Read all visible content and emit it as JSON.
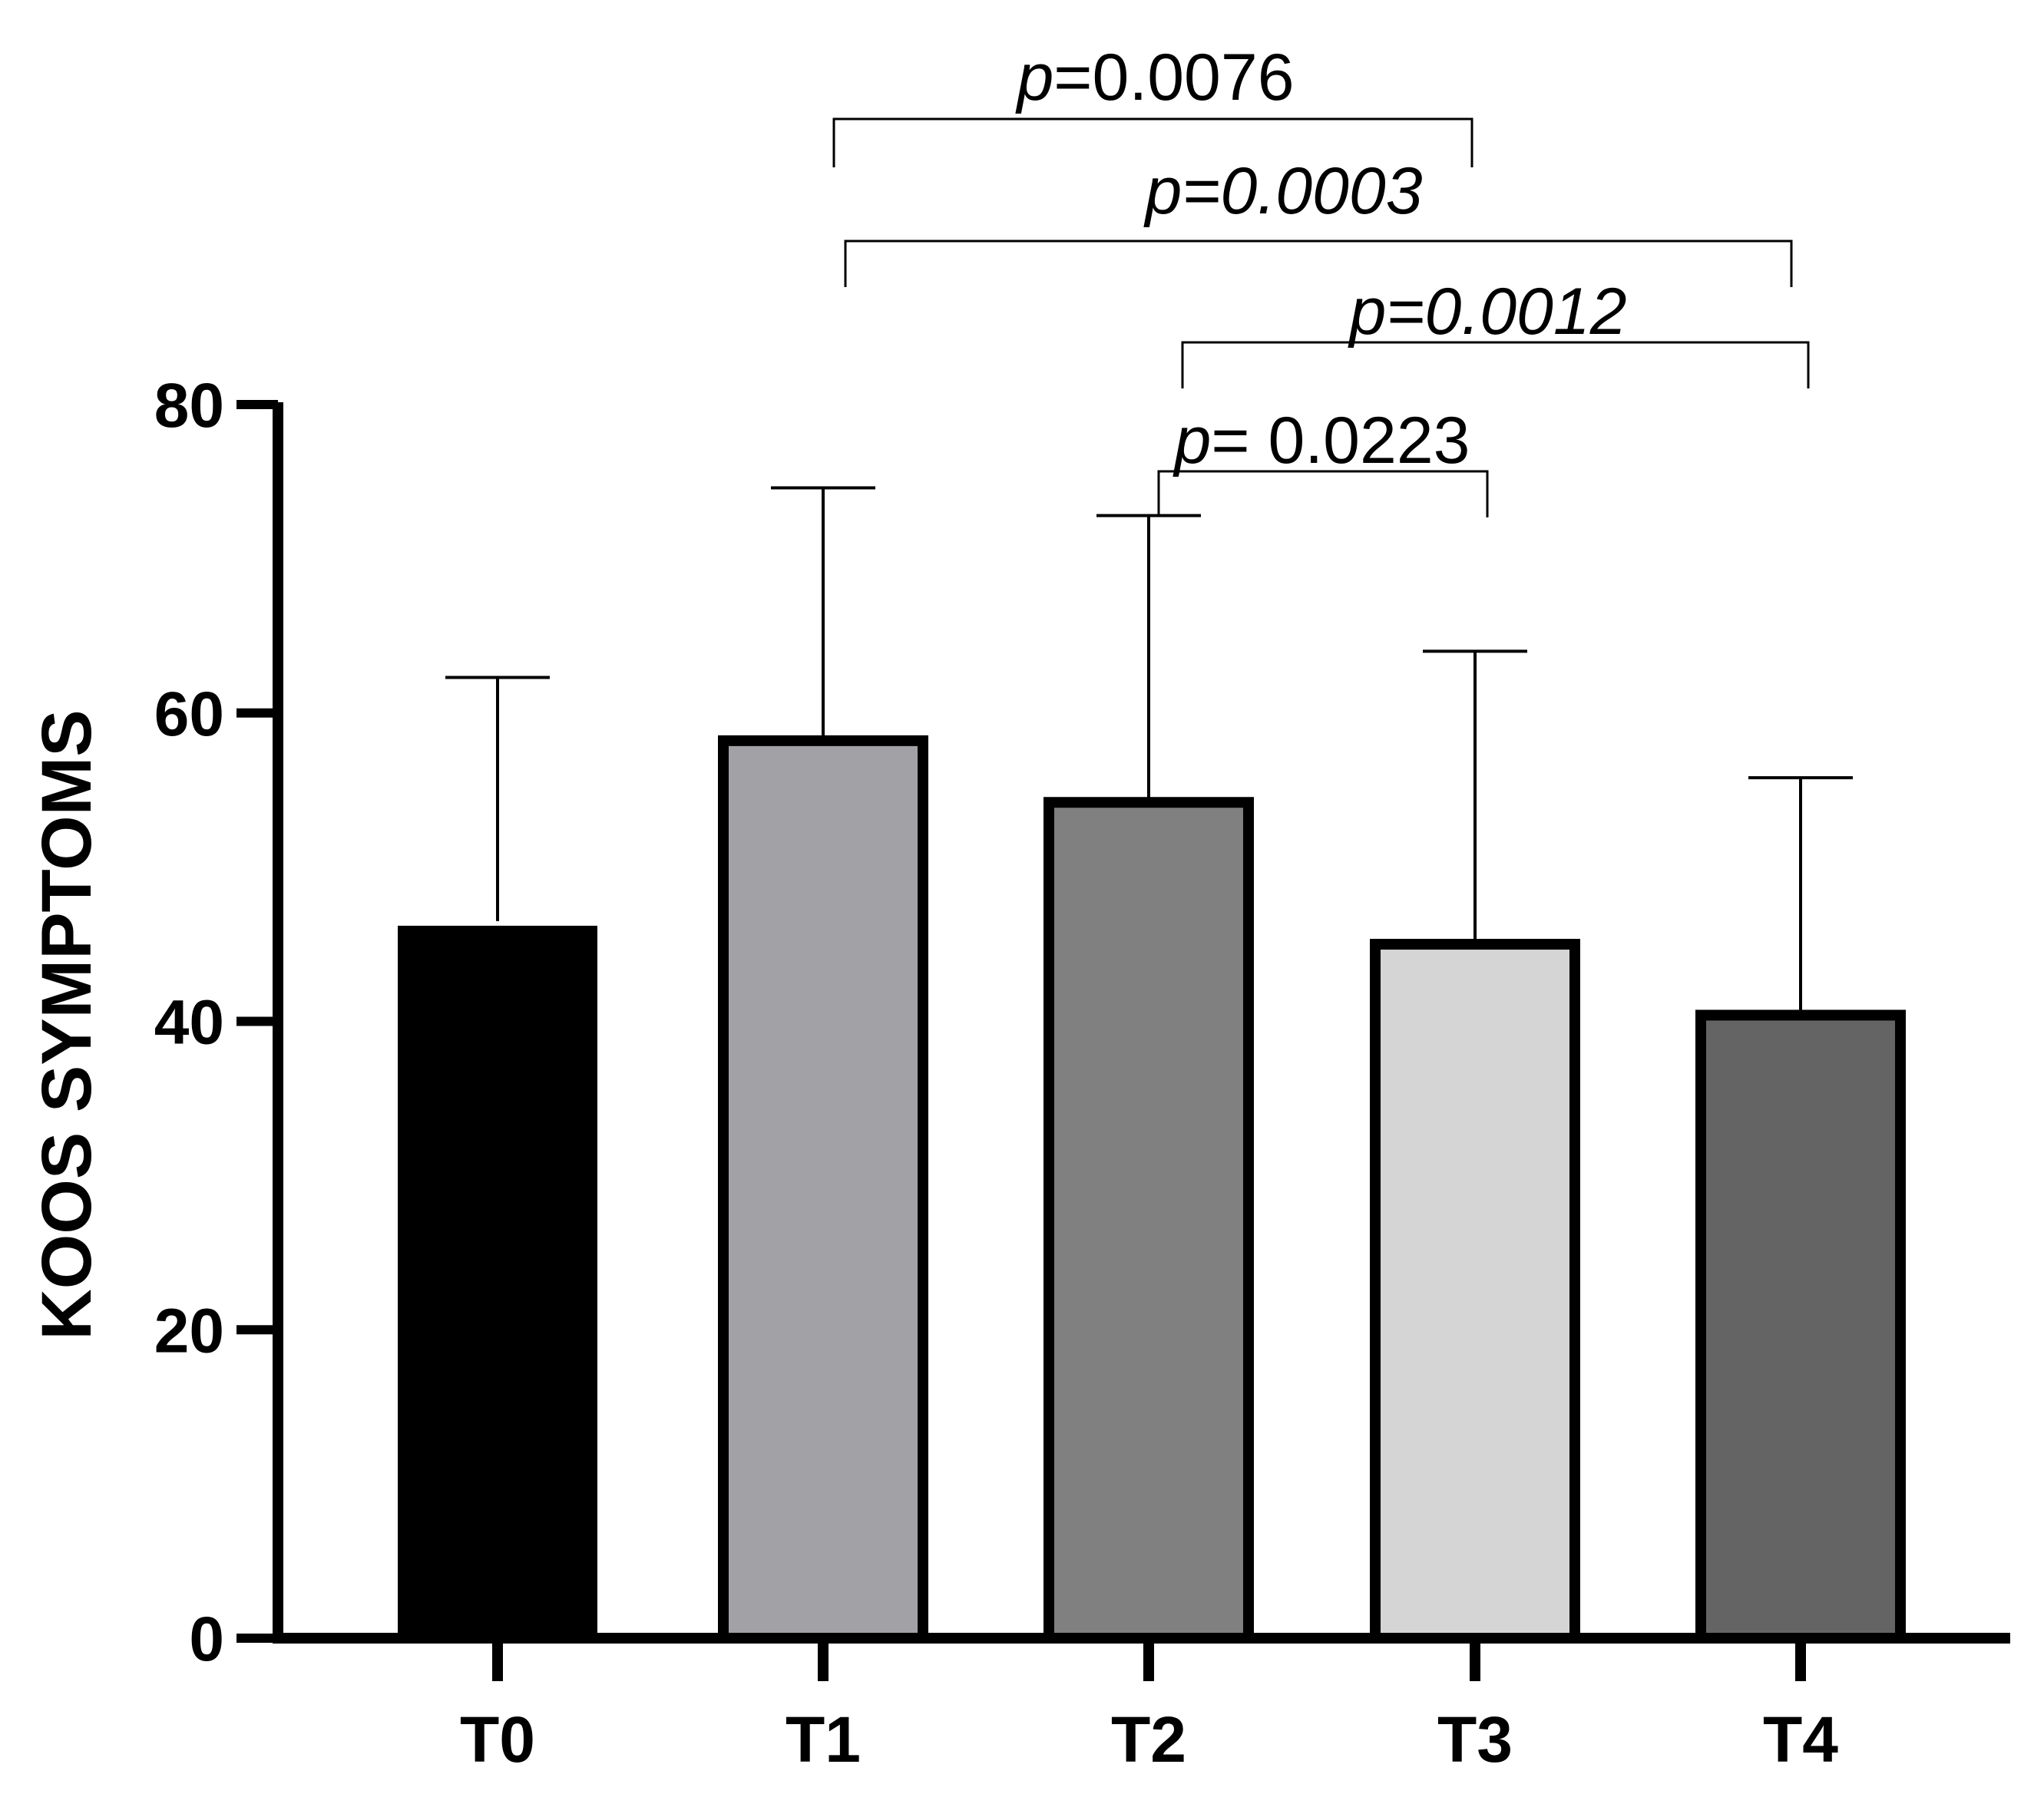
{
  "chart_data": {
    "type": "bar",
    "title": "",
    "xlabel": "",
    "ylabel": "KOOS SYMPTOMS",
    "categories": [
      "T0",
      "T1",
      "T2",
      "T3",
      "T4"
    ],
    "values": [
      46.5,
      58.5,
      54.5,
      45.3,
      40.7
    ],
    "error_upper": [
      62.3,
      74.6,
      72.8,
      64.0,
      55.8
    ],
    "ylim": [
      0,
      80
    ],
    "yticks": [
      0,
      20,
      40,
      60,
      80
    ],
    "ytick_labels": [
      "0",
      "20",
      "40",
      "60",
      "80"
    ],
    "bar_colors": [
      "#000000",
      "#a2a2a6",
      "#808080",
      "#d5d5d5",
      "#646464"
    ],
    "grid": false,
    "legend": "none",
    "comparisons": [
      {
        "from": "T1",
        "to": "T3",
        "p_prefix": "p",
        "p_value": "=0.0076",
        "value_italic": false
      },
      {
        "from": "T1",
        "to": "T4",
        "p_prefix": "p",
        "p_value": "=0.0003",
        "value_italic": true
      },
      {
        "from": "T2",
        "to": "T4",
        "p_prefix": "p",
        "p_value": "=0.0012",
        "value_italic": true
      },
      {
        "from": "T2",
        "to": "T3",
        "p_prefix": "p",
        "p_value": "= 0.0223",
        "value_italic": false
      }
    ]
  }
}
